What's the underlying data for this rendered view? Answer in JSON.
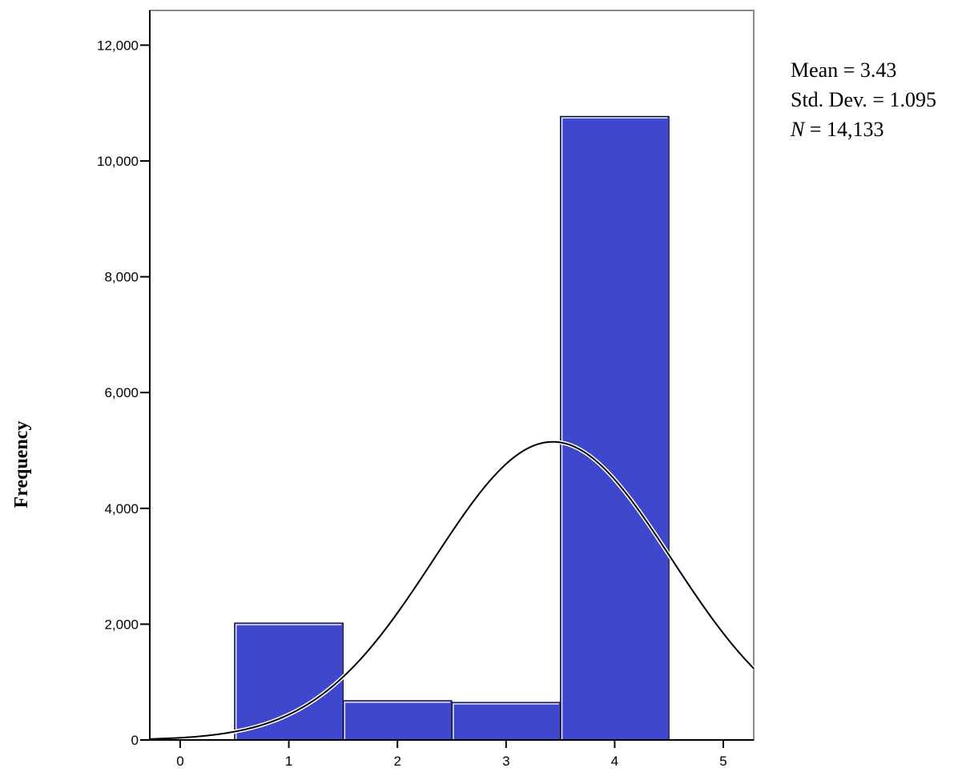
{
  "chart_data": {
    "type": "bar",
    "x": [
      1,
      2,
      3,
      4
    ],
    "values": [
      2020,
      680,
      650,
      10770
    ],
    "bin_width": 1,
    "xlim": [
      -0.28,
      5.28
    ],
    "ylim": [
      0,
      12600
    ],
    "x_ticks": [
      0,
      1,
      2,
      3,
      4,
      5
    ],
    "x_tick_labels": [
      "0",
      "1",
      "2",
      "3",
      "4",
      "5"
    ],
    "y_ticks": [
      0,
      2000,
      4000,
      6000,
      8000,
      10000,
      12000
    ],
    "y_tick_labels": [
      "0",
      "2,000",
      "4,000",
      "6,000",
      "8,000",
      "10,000",
      "12,000"
    ],
    "title": "",
    "xlabel": "",
    "ylabel": "Frequency",
    "normal_curve": {
      "mean": 3.43,
      "std_dev": 1.095,
      "n": 14133
    },
    "stats": {
      "mean_label": "Mean",
      "mean_value": "3.43",
      "sd_label": "Std. Dev.",
      "sd_value": "1.095",
      "n_label": "N",
      "n_value": "14,133"
    },
    "colors": {
      "bar_fill": "#3f48cc",
      "bar_stroke": "#000000",
      "curve": "#000000",
      "axis": "#000000"
    },
    "grid": false,
    "legend": "none"
  }
}
